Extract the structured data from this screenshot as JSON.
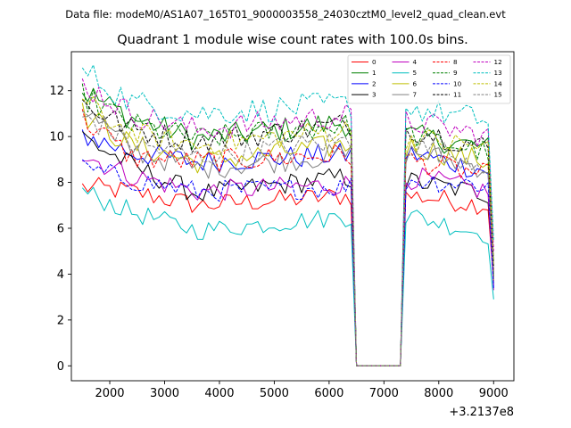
{
  "header": {
    "file_line": "Data file: modeM0/AS1A07_165T01_9000003558_24030cztM0_level2_quad_clean.evt"
  },
  "chart_data": {
    "type": "line",
    "title": "Quadrant 1 module wise count rates with 100.0s bins.",
    "xlabel": "",
    "ylabel": "",
    "x_offset_label": "+3.2137e8",
    "xlim": [
      1300,
      9370
    ],
    "ylim": [
      -0.65,
      13.7
    ],
    "xticks": [
      2000,
      3000,
      4000,
      5000,
      6000,
      7000,
      8000,
      9000
    ],
    "yticks": [
      0,
      2,
      4,
      6,
      8,
      10,
      12
    ],
    "grid": false,
    "legend_position": "top-right",
    "x_start": 1500,
    "x_end": 9000,
    "bin": 100,
    "gap_start": 6500,
    "gap_end": 7300,
    "series": [
      {
        "name": "0",
        "color": "#ff0000",
        "dash": "solid",
        "start": 7.8,
        "early": 7.6,
        "mid": 7.0,
        "late": 7.4,
        "after": 7.4,
        "end": 7.0,
        "drop": 3.7
      },
      {
        "name": "1",
        "color": "#008000",
        "dash": "solid",
        "start": 12.0,
        "early": 10.8,
        "mid": 9.9,
        "late": 10.6,
        "after": 10.0,
        "end": 9.5,
        "drop": 4.0
      },
      {
        "name": "2",
        "color": "#0000ff",
        "dash": "solid",
        "start": 10.1,
        "early": 9.3,
        "mid": 8.9,
        "late": 9.2,
        "after": 9.2,
        "end": 8.5,
        "drop": 3.5
      },
      {
        "name": "3",
        "color": "#000000",
        "dash": "solid",
        "start": 10.0,
        "early": 8.7,
        "mid": 7.5,
        "late": 8.2,
        "after": 8.0,
        "end": 7.5,
        "drop": 3.9
      },
      {
        "name": "4",
        "color": "#bf00bf",
        "dash": "solid",
        "start": 9.2,
        "early": 8.3,
        "mid": 7.6,
        "late": 7.9,
        "after": 8.2,
        "end": 7.6,
        "drop": 3.3
      },
      {
        "name": "5",
        "color": "#00bfbf",
        "dash": "solid",
        "start": 7.6,
        "early": 6.7,
        "mid": 5.9,
        "late": 6.5,
        "after": 6.5,
        "end": 5.7,
        "drop": 2.9
      },
      {
        "name": "6",
        "color": "#bfbf00",
        "dash": "solid",
        "start": 11.0,
        "early": 9.6,
        "mid": 8.9,
        "late": 9.6,
        "after": 9.5,
        "end": 8.9,
        "drop": 3.8
      },
      {
        "name": "7",
        "color": "#808080",
        "dash": "solid",
        "start": 11.2,
        "early": 9.4,
        "mid": 8.6,
        "late": 9.2,
        "after": 9.3,
        "end": 8.6,
        "drop": 3.6
      },
      {
        "name": "8",
        "color": "#ff0000",
        "dash": "dashed",
        "start": 10.8,
        "early": 9.1,
        "mid": 8.9,
        "late": 9.2,
        "after": 8.9,
        "end": 8.3,
        "drop": 4.2
      },
      {
        "name": "9",
        "color": "#008000",
        "dash": "dashed",
        "start": 11.8,
        "early": 10.5,
        "mid": 9.9,
        "late": 10.5,
        "after": 10.0,
        "end": 9.3,
        "drop": 4.6
      },
      {
        "name": "10",
        "color": "#0000ff",
        "dash": "dashed",
        "start": 8.6,
        "early": 8.1,
        "mid": 7.6,
        "late": 7.8,
        "after": 8.1,
        "end": 7.9,
        "drop": 3.4
      },
      {
        "name": "11",
        "color": "#000000",
        "dash": "dashed",
        "start": 11.5,
        "early": 10.3,
        "mid": 9.8,
        "late": 10.5,
        "after": 10.3,
        "end": 9.5,
        "drop": 4.3
      },
      {
        "name": "12",
        "color": "#bf00bf",
        "dash": "dashed",
        "start": 12.3,
        "early": 11.0,
        "mid": 10.3,
        "late": 10.9,
        "after": 10.6,
        "end": 10.0,
        "drop": 5.0
      },
      {
        "name": "13",
        "color": "#00bfbf",
        "dash": "dashed",
        "start": 12.9,
        "early": 11.5,
        "mid": 11.0,
        "late": 11.4,
        "after": 11.2,
        "end": 10.7,
        "drop": 5.5
      },
      {
        "name": "14",
        "color": "#bfbf00",
        "dash": "dashed",
        "start": 11.5,
        "early": 10.1,
        "mid": 9.6,
        "late": 10.3,
        "after": 9.9,
        "end": 9.5,
        "drop": 4.4
      },
      {
        "name": "15",
        "color": "#808080",
        "dash": "dashed",
        "start": 11.0,
        "early": 9.7,
        "mid": 9.1,
        "late": 9.8,
        "after": 9.6,
        "end": 8.8,
        "drop": 4.1
      }
    ]
  }
}
